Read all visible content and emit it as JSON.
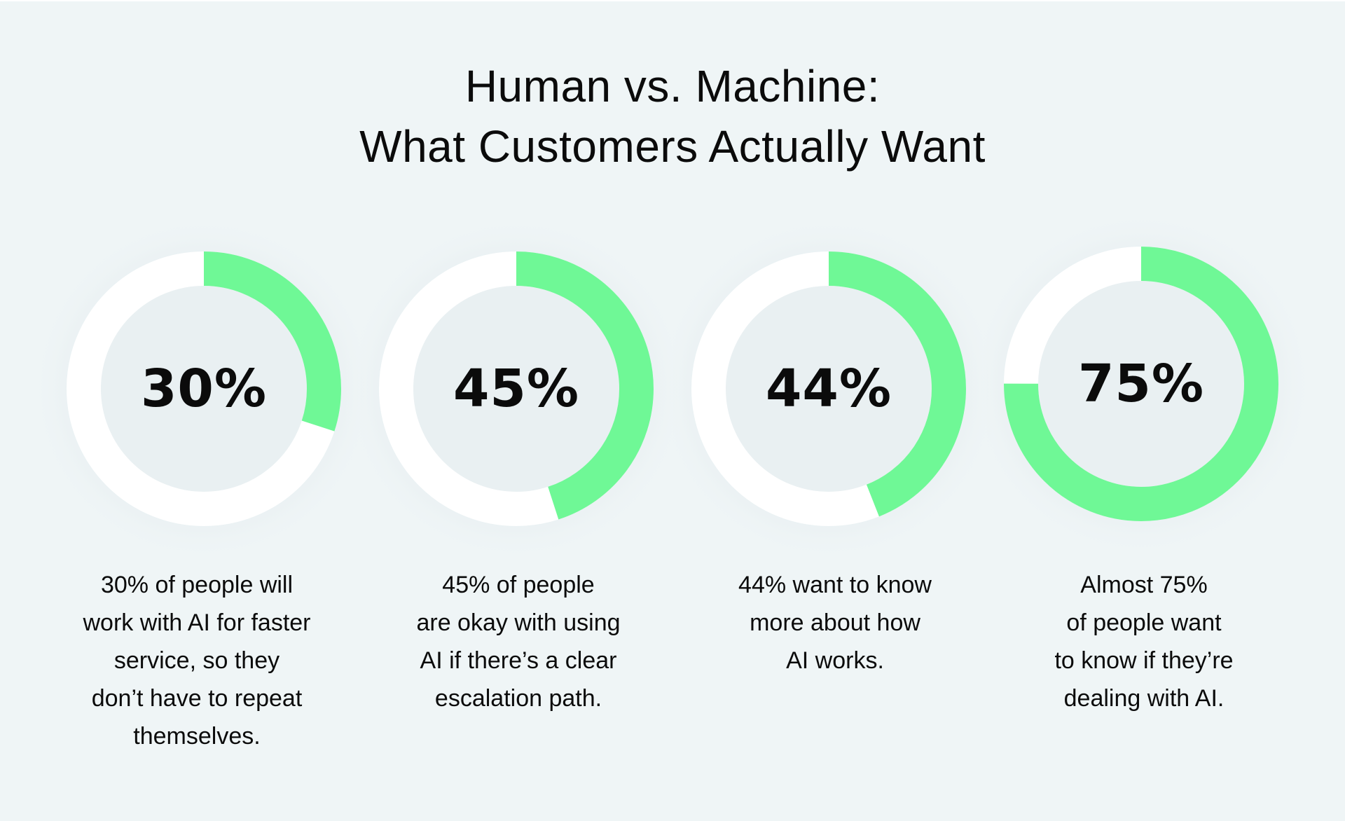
{
  "title": {
    "line1": "Human vs. Machine:",
    "line2": "What Customers Actually Want"
  },
  "colors": {
    "background": "#eff5f6",
    "accent_green": "#6ff896",
    "track_white": "#ffffff",
    "inner_fill": "#e9f0f2",
    "text": "#0b0b0b"
  },
  "donuts": [
    {
      "value_label": "30%",
      "percent": 30,
      "caption": [
        "30% of people will",
        "work with AI for faster",
        "service, so they",
        "don’t have to repeat",
        "themselves."
      ]
    },
    {
      "value_label": "45%",
      "percent": 45,
      "caption": [
        "45% of people",
        "are okay with using",
        "AI if there’s a clear",
        "escalation path."
      ]
    },
    {
      "value_label": "44%",
      "percent": 44,
      "caption": [
        "44% want to know",
        "more about how",
        "AI works."
      ]
    },
    {
      "value_label": "75%",
      "percent": 75,
      "caption": [
        "Almost 75%",
        "of people want",
        "to know if they’re",
        "dealing with AI."
      ]
    }
  ],
  "chart_data": {
    "type": "pie",
    "subtype": "donut",
    "title": "Human vs. Machine: What Customers Actually Want",
    "categories": [
      "Will work with AI for faster service (no repeating themselves)",
      "Okay with AI if clear escalation path",
      "Want to know more about how AI works",
      "Want to know if they're dealing with AI"
    ],
    "values": [
      30,
      45,
      44,
      75
    ],
    "unit": "%",
    "xlabel": "",
    "ylabel": "",
    "legend": "none",
    "grid": false
  }
}
